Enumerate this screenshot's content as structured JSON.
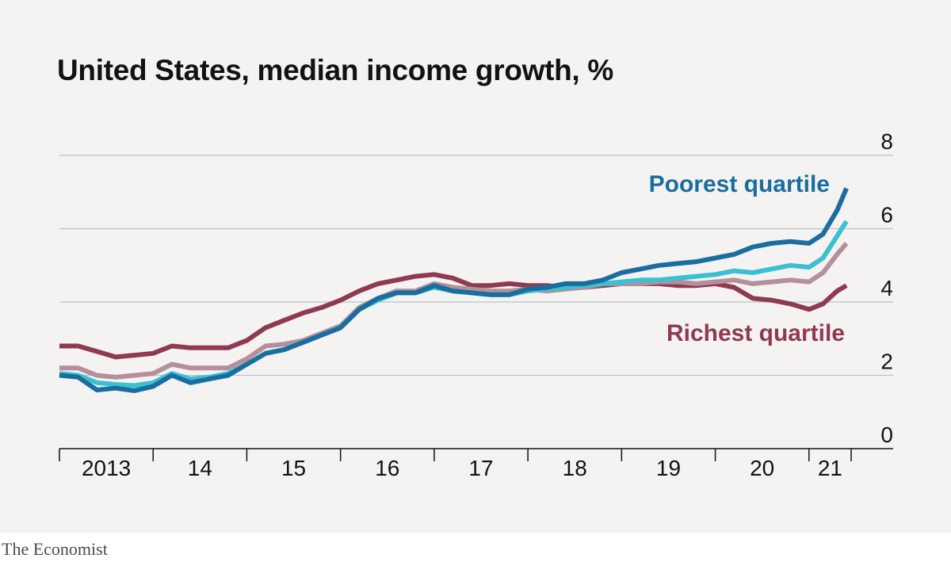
{
  "title": "United States, median income growth, %",
  "source": "The Economist",
  "colors": {
    "background": "#f4f3f2",
    "grid": "#b7c4cb",
    "axis": "#121212",
    "poorest": "#1a6e9f",
    "second": "#3bc0d2",
    "third": "#b58f9c",
    "richest": "#8e3a50"
  },
  "chart_data": {
    "type": "line",
    "title": "United States, median income growth, %",
    "xlabel": "",
    "ylabel": "",
    "ylim": [
      0,
      8
    ],
    "yticks": [
      "0",
      "2",
      "4",
      "6",
      "8"
    ],
    "xlim": [
      2013.0,
      2021.45
    ],
    "xticks": [
      {
        "label": "2013",
        "start": 2013,
        "end": 2014
      },
      {
        "label": "14",
        "start": 2014,
        "end": 2015
      },
      {
        "label": "15",
        "start": 2015,
        "end": 2016
      },
      {
        "label": "16",
        "start": 2016,
        "end": 2017
      },
      {
        "label": "17",
        "start": 2017,
        "end": 2018
      },
      {
        "label": "18",
        "start": 2018,
        "end": 2019
      },
      {
        "label": "19",
        "start": 2019,
        "end": 2020
      },
      {
        "label": "20",
        "start": 2020,
        "end": 2021
      },
      {
        "label": "21",
        "start": 2021,
        "end": 2021.45
      }
    ],
    "grid": true,
    "x": [
      2013.0,
      2013.2,
      2013.4,
      2013.6,
      2013.8,
      2014.0,
      2014.2,
      2014.4,
      2014.6,
      2014.8,
      2015.0,
      2015.2,
      2015.4,
      2015.6,
      2015.8,
      2016.0,
      2016.2,
      2016.4,
      2016.6,
      2016.8,
      2017.0,
      2017.2,
      2017.4,
      2017.6,
      2017.8,
      2018.0,
      2018.2,
      2018.4,
      2018.6,
      2018.8,
      2019.0,
      2019.2,
      2019.4,
      2019.6,
      2019.8,
      2020.0,
      2020.2,
      2020.4,
      2020.6,
      2020.8,
      2021.0,
      2021.15,
      2021.3,
      2021.4
    ],
    "series": [
      {
        "name": "Poorest quartile",
        "color": "#1a6e9f",
        "values": [
          2.0,
          1.95,
          1.6,
          1.65,
          1.58,
          1.7,
          2.0,
          1.8,
          1.9,
          2.0,
          2.3,
          2.6,
          2.7,
          2.9,
          3.1,
          3.3,
          3.8,
          4.1,
          4.25,
          4.25,
          4.45,
          4.3,
          4.25,
          4.2,
          4.2,
          4.35,
          4.4,
          4.5,
          4.5,
          4.6,
          4.8,
          4.9,
          5.0,
          5.05,
          5.1,
          5.2,
          5.3,
          5.5,
          5.6,
          5.65,
          5.6,
          5.85,
          6.5,
          7.1
        ]
      },
      {
        "name": "",
        "color": "#3bc0d2",
        "values": [
          2.05,
          2.0,
          1.8,
          1.75,
          1.72,
          1.8,
          2.05,
          1.9,
          1.95,
          2.05,
          2.3,
          2.6,
          2.7,
          2.9,
          3.1,
          3.3,
          3.8,
          4.05,
          4.25,
          4.25,
          4.4,
          4.3,
          4.25,
          4.2,
          4.2,
          4.3,
          4.35,
          4.4,
          4.45,
          4.5,
          4.55,
          4.6,
          4.6,
          4.65,
          4.7,
          4.75,
          4.85,
          4.8,
          4.9,
          5.0,
          4.95,
          5.2,
          5.8,
          6.2
        ]
      },
      {
        "name": "",
        "color": "#b58f9c",
        "values": [
          2.2,
          2.2,
          2.0,
          1.95,
          2.0,
          2.05,
          2.3,
          2.2,
          2.2,
          2.2,
          2.45,
          2.8,
          2.85,
          2.95,
          3.15,
          3.35,
          3.85,
          4.1,
          4.3,
          4.3,
          4.5,
          4.4,
          4.35,
          4.3,
          4.3,
          4.35,
          4.3,
          4.35,
          4.4,
          4.5,
          4.5,
          4.5,
          4.55,
          4.55,
          4.5,
          4.55,
          4.6,
          4.5,
          4.55,
          4.6,
          4.55,
          4.8,
          5.3,
          5.6
        ]
      },
      {
        "name": "Richest quartile",
        "color": "#8e3a50",
        "values": [
          2.8,
          2.8,
          2.65,
          2.5,
          2.55,
          2.6,
          2.8,
          2.75,
          2.75,
          2.75,
          2.95,
          3.3,
          3.5,
          3.7,
          3.85,
          4.05,
          4.3,
          4.5,
          4.6,
          4.7,
          4.75,
          4.65,
          4.45,
          4.45,
          4.5,
          4.45,
          4.45,
          4.4,
          4.4,
          4.45,
          4.5,
          4.5,
          4.5,
          4.45,
          4.45,
          4.5,
          4.4,
          4.1,
          4.05,
          3.95,
          3.8,
          3.95,
          4.3,
          4.45
        ]
      }
    ],
    "annotations": [
      "Poorest quartile",
      "Richest quartile"
    ]
  }
}
